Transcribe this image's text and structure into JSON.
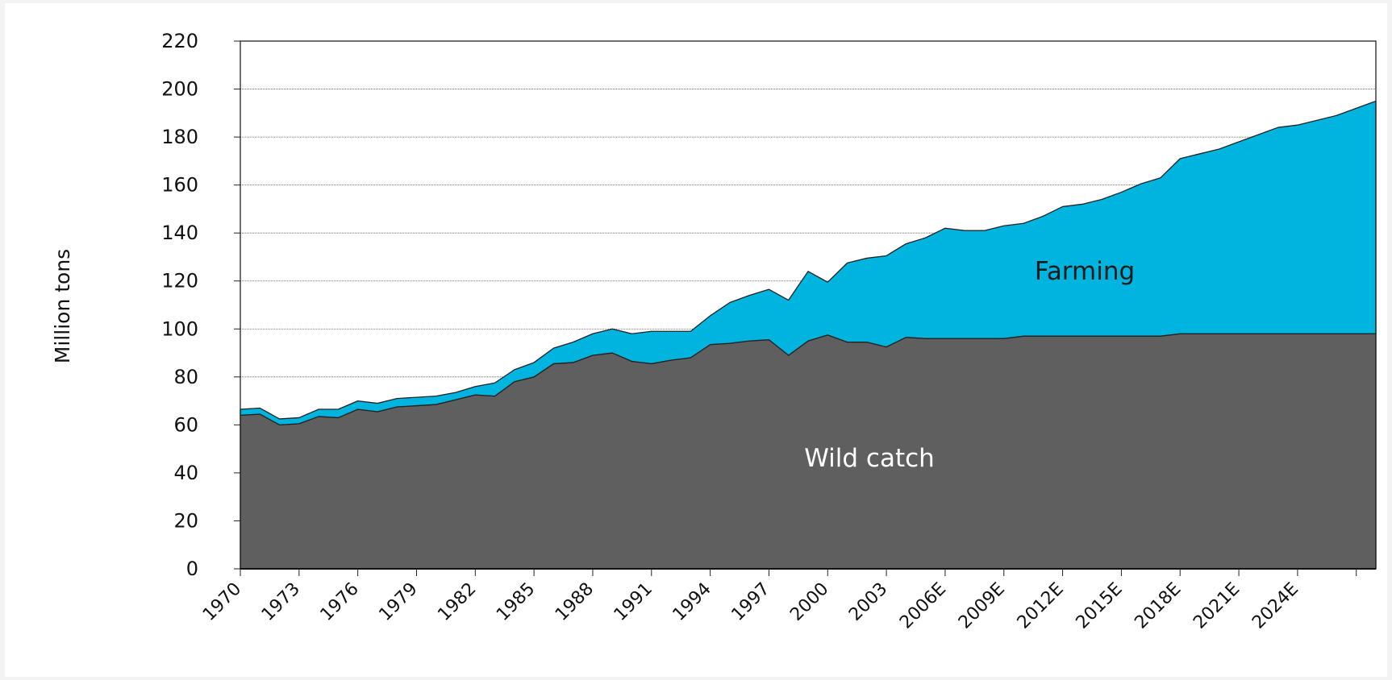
{
  "chart_data": {
    "type": "area",
    "stacked": true,
    "title": "",
    "xlabel": "",
    "ylabel": "Million tons",
    "ylim": [
      0,
      220
    ],
    "yticks": [
      0,
      20,
      40,
      60,
      80,
      100,
      120,
      140,
      160,
      180,
      200,
      220
    ],
    "grid": "horizontal",
    "legend": "none (series labelled inside areas)",
    "x": [
      1970,
      1971,
      1972,
      1973,
      1974,
      1975,
      1976,
      1977,
      1978,
      1979,
      1980,
      1981,
      1982,
      1983,
      1984,
      1985,
      1986,
      1987,
      1988,
      1989,
      1990,
      1991,
      1992,
      1993,
      1994,
      1995,
      1996,
      1997,
      1998,
      1999,
      2000,
      2001,
      2002,
      2003,
      2004,
      2005,
      2006,
      2007,
      2008,
      2009,
      2010,
      2011,
      2012,
      2013,
      2014,
      2015,
      2016,
      2017,
      2018,
      2019,
      2020,
      2021,
      2022,
      2023,
      2024,
      2025,
      2026,
      2027,
      2028
    ],
    "x_tick_labels": [
      "1970",
      "1973",
      "1976",
      "1979",
      "1982",
      "1985",
      "1988",
      "1991",
      "1994",
      "1997",
      "2000",
      "2003",
      "2006E",
      "2009E",
      "2012E",
      "2015E",
      "2018E",
      "2021E",
      "2024E"
    ],
    "x_tick_years": [
      1970,
      1973,
      1976,
      1979,
      1982,
      1985,
      1988,
      1991,
      1994,
      1997,
      2000,
      2003,
      2006,
      2009,
      2012,
      2015,
      2018,
      2021,
      2024
    ],
    "series": [
      {
        "name": "Wild catch",
        "color": "#5f5f5f",
        "values": [
          64,
          64.5,
          60,
          60.5,
          63.5,
          63,
          66.5,
          65.5,
          67.5,
          68,
          68.5,
          70.5,
          72.5,
          72,
          78,
          80,
          85.5,
          86,
          89,
          90,
          86.5,
          85.5,
          87,
          88,
          93.5,
          94,
          95,
          95.5,
          89,
          95,
          97.5,
          94.5,
          94.5,
          92.5,
          96.5,
          96,
          96,
          96,
          96,
          96,
          97,
          97,
          97,
          97,
          97,
          97,
          97,
          97,
          98,
          98,
          98,
          98,
          98,
          98,
          98,
          98,
          98,
          98,
          98
        ]
      },
      {
        "name": "Farming",
        "color": "#00b4e0",
        "values": [
          2.5,
          2.5,
          2.5,
          2.5,
          3,
          3.5,
          3.5,
          3.5,
          3.5,
          3.5,
          3.5,
          3,
          3.5,
          5.5,
          5,
          6,
          6.5,
          8.5,
          9,
          10,
          11.5,
          13.5,
          12,
          11,
          12,
          17,
          19,
          21,
          23,
          29,
          22,
          33,
          35,
          38,
          39,
          42,
          46,
          45,
          45,
          47,
          47,
          50,
          54,
          55,
          57,
          60,
          63.5,
          66,
          73,
          75,
          77,
          80,
          83,
          86,
          87,
          89,
          91,
          94,
          97
        ]
      }
    ]
  }
}
